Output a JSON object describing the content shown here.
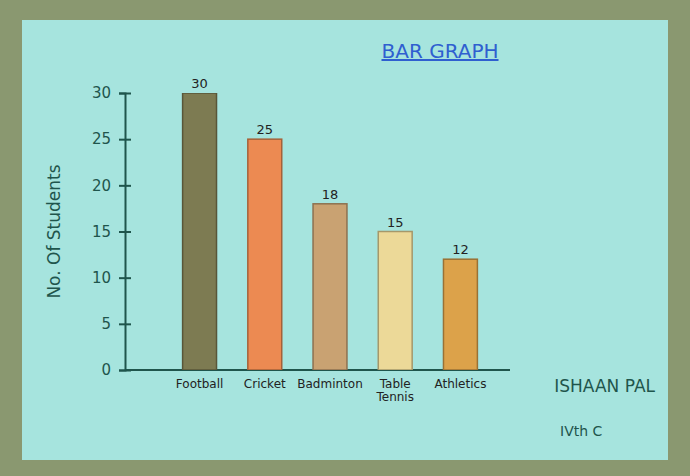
{
  "chart_data": {
    "type": "bar",
    "title": "BAR GRAPH",
    "y_label": "No. Of Students",
    "categories": [
      "Football",
      "Cricket",
      "Badminton",
      "Table Tennis",
      "Athletics"
    ],
    "values": [
      30,
      25,
      18,
      15,
      12
    ],
    "colors": [
      "#7d7b52",
      "#ec8a52",
      "#c9a272",
      "#ecd998",
      "#dca24a"
    ],
    "ylim": [
      0,
      30
    ],
    "yticks": [
      0,
      5,
      10,
      15,
      20,
      25,
      30
    ],
    "grid": false,
    "data_labels": true,
    "annotations": [
      "ISHAAN PAL",
      "IVth C"
    ]
  }
}
